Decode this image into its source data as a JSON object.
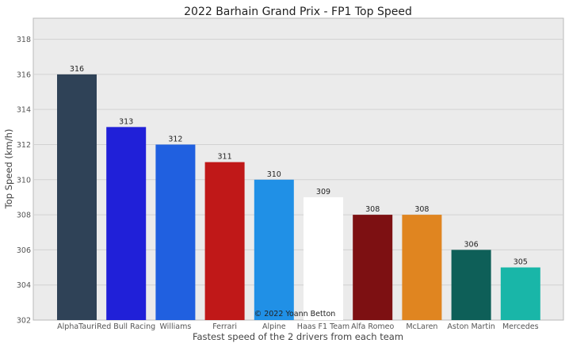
{
  "chart_data": {
    "type": "bar",
    "title": "2022 Barhain Grand Prix - FP1 Top Speed",
    "xlabel": "Fastest speed of the 2 drivers from each team",
    "ylabel": "Top Speed (km/h)",
    "ylim": [
      302,
      319.2
    ],
    "yticks": [
      302,
      304,
      306,
      308,
      310,
      312,
      314,
      316,
      318
    ],
    "grid": true,
    "categories": [
      "AlphaTauri",
      "Red Bull Racing",
      "Williams",
      "Ferrari",
      "Alpine",
      "Haas F1 Team",
      "Alfa Romeo",
      "McLaren",
      "Aston Martin",
      "Mercedes"
    ],
    "values": [
      316,
      313,
      312,
      311,
      310,
      309,
      308,
      308,
      306,
      305
    ],
    "colors": [
      "#2f4257",
      "#2020d8",
      "#2060e0",
      "#c01818",
      "#2090e6",
      "#ffffff",
      "#7d1012",
      "#e08520",
      "#0e5f58",
      "#19b6a8"
    ],
    "annotation": "© 2022 Yoann Betton"
  }
}
